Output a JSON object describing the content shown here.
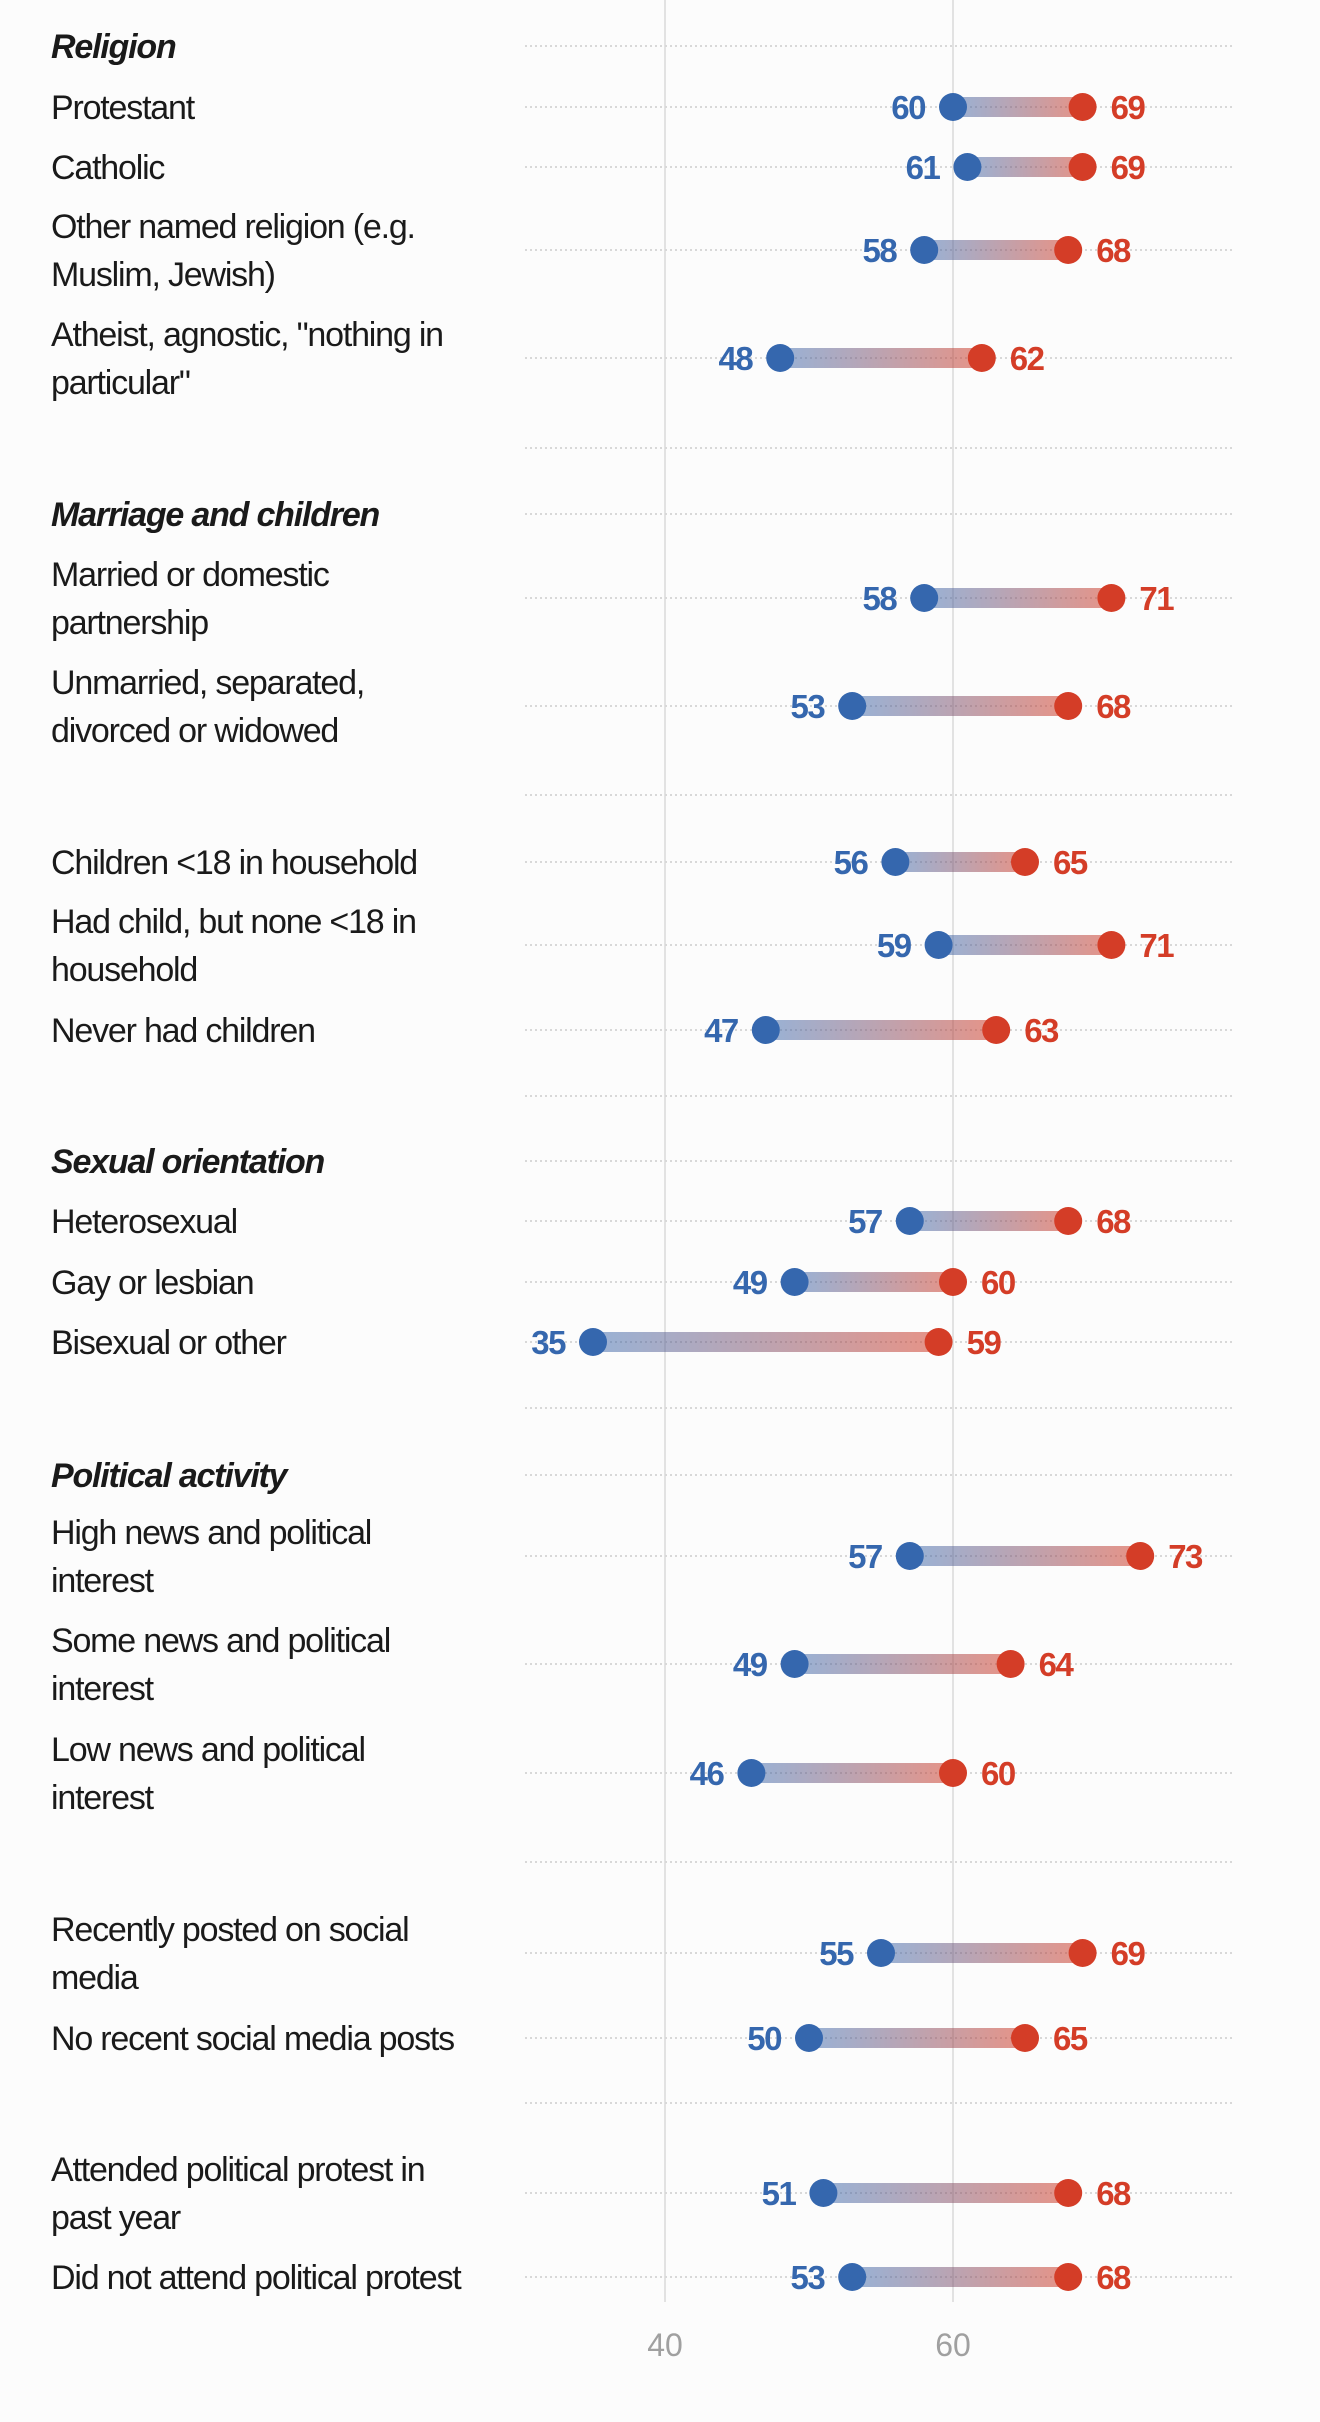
{
  "chart_data": {
    "type": "dumbbell",
    "xlim": [
      30,
      80
    ],
    "xticks": [
      40,
      60
    ],
    "grid": true,
    "colors": {
      "low": "#3567ae",
      "high": "#d43d27"
    },
    "rows": [
      {
        "kind": "header",
        "lines": [
          "Religion"
        ]
      },
      {
        "kind": "item",
        "lines": [
          "Protestant"
        ],
        "low": 60,
        "high": 69
      },
      {
        "kind": "item",
        "lines": [
          "Catholic"
        ],
        "low": 61,
        "high": 69
      },
      {
        "kind": "item",
        "lines": [
          "Other named religion (e.g.",
          "Muslim, Jewish)"
        ],
        "low": 58,
        "high": 68
      },
      {
        "kind": "item",
        "lines": [
          "Atheist, agnostic, \"nothing in",
          "particular\""
        ],
        "low": 48,
        "high": 62
      },
      {
        "kind": "spacer"
      },
      {
        "kind": "header",
        "lines": [
          "Marriage and children"
        ]
      },
      {
        "kind": "item",
        "lines": [
          "Married or domestic",
          "partnership"
        ],
        "low": 58,
        "high": 71
      },
      {
        "kind": "item",
        "lines": [
          "Unmarried, separated,",
          "divorced or widowed"
        ],
        "low": 53,
        "high": 68
      },
      {
        "kind": "spacer"
      },
      {
        "kind": "item",
        "lines": [
          "Children <18 in household"
        ],
        "low": 56,
        "high": 65
      },
      {
        "kind": "item",
        "lines": [
          "Had child, but none <18 in",
          "household"
        ],
        "low": 59,
        "high": 71
      },
      {
        "kind": "item",
        "lines": [
          "Never had children"
        ],
        "low": 47,
        "high": 63
      },
      {
        "kind": "spacer"
      },
      {
        "kind": "header",
        "lines": [
          "Sexual orientation"
        ]
      },
      {
        "kind": "item",
        "lines": [
          "Heterosexual"
        ],
        "low": 57,
        "high": 68
      },
      {
        "kind": "item",
        "lines": [
          "Gay or lesbian"
        ],
        "low": 49,
        "high": 60
      },
      {
        "kind": "item",
        "lines": [
          "Bisexual or other"
        ],
        "low": 35,
        "high": 59
      },
      {
        "kind": "spacer"
      },
      {
        "kind": "header",
        "lines": [
          "Political activity"
        ]
      },
      {
        "kind": "item",
        "lines": [
          "High news and political",
          "interest"
        ],
        "low": 57,
        "high": 73
      },
      {
        "kind": "item",
        "lines": [
          "Some news and political",
          "interest"
        ],
        "low": 49,
        "high": 64
      },
      {
        "kind": "item",
        "lines": [
          "Low news and political",
          "interest"
        ],
        "low": 46,
        "high": 60
      },
      {
        "kind": "spacer"
      },
      {
        "kind": "item",
        "lines": [
          "Recently posted on social",
          "media"
        ],
        "low": 55,
        "high": 69
      },
      {
        "kind": "item",
        "lines": [
          "No recent social media posts"
        ],
        "low": 50,
        "high": 65
      },
      {
        "kind": "spacer"
      },
      {
        "kind": "item",
        "lines": [
          "Attended political protest in",
          "past year"
        ],
        "low": 51,
        "high": 68
      },
      {
        "kind": "item",
        "lines": [
          "Did not attend political protest"
        ],
        "low": 53,
        "high": 68
      }
    ]
  }
}
